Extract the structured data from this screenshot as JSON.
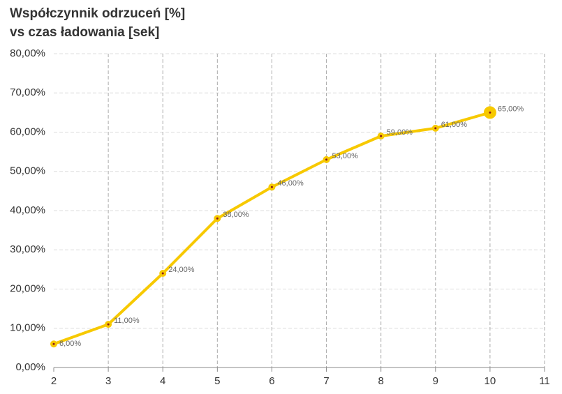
{
  "chart_data": {
    "type": "line",
    "title": [
      "Współczynnik odrzuceń [%]",
      "vs czas ładowania  [sek]"
    ],
    "x": [
      2,
      3,
      4,
      5,
      6,
      7,
      8,
      9,
      10
    ],
    "series": [
      {
        "color": "#f7c900",
        "values": [
          6,
          11,
          24,
          38,
          46,
          53,
          59,
          61,
          65
        ],
        "value_labels": [
          "6,00%",
          "11,00%",
          "24,00%",
          "38,00%",
          "46,00%",
          "53,00%",
          "59,00%",
          "61,00%",
          "65,00%"
        ]
      }
    ],
    "xlim": [
      2,
      11
    ],
    "xticks": [
      2,
      3,
      4,
      5,
      6,
      7,
      8,
      9,
      10,
      11
    ],
    "ylim": [
      0,
      80
    ],
    "yticks": [
      {
        "value": 0,
        "label": "0,00%"
      },
      {
        "value": 10,
        "label": "10,00%"
      },
      {
        "value": 20,
        "label": "20,00%"
      },
      {
        "value": 30,
        "label": "30,00%"
      },
      {
        "value": 40,
        "label": "40,00%"
      },
      {
        "value": 50,
        "label": "50,00%"
      },
      {
        "value": 60,
        "label": "60,00%"
      },
      {
        "value": 70,
        "label": "70,00%"
      },
      {
        "value": 80,
        "label": "80,00%"
      }
    ],
    "grid": true
  }
}
